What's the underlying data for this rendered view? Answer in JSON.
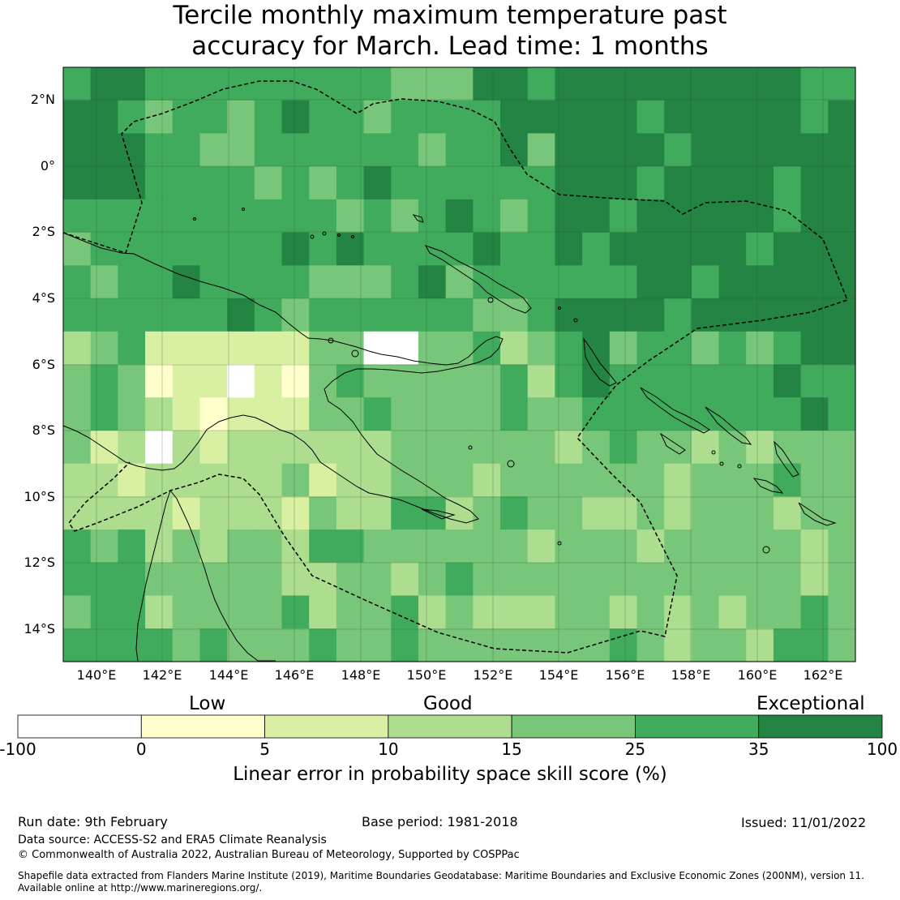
{
  "title": {
    "line1": "Tercile monthly maximum temperature past",
    "line2": "accuracy for March. Lead time: 1 months"
  },
  "map": {
    "lat_labels": [
      "2°N",
      "0°",
      "2°S",
      "4°S",
      "6°S",
      "8°S",
      "10°S",
      "12°S",
      "14°S"
    ],
    "lon_labels": [
      "140°E",
      "142°E",
      "144°E",
      "146°E",
      "148°E",
      "150°E",
      "152°E",
      "154°E",
      "156°E",
      "158°E",
      "160°E",
      "162°E"
    ],
    "colors": {
      "neg": "#ffffff",
      "c0_5": "#ffffcc",
      "c5_10": "#d9f0a3",
      "c10_15": "#addd8e",
      "c15_25": "#78c679",
      "c25_35": "#41ab5d",
      "c35_100": "#238443"
    }
  },
  "colorbar": {
    "categories": [
      "Low",
      "Good",
      "Exceptional"
    ],
    "ticks": [
      "-100",
      "0",
      "5",
      "10",
      "15",
      "25",
      "35",
      "100"
    ],
    "title": "Linear error in probability space skill score (%)"
  },
  "footer": {
    "run_date": "Run date: 9th February",
    "base_period": "Base period: 1981-2018",
    "issued": "Issued: 11/01/2022",
    "data_source": "Data source: ACCESS-S2 and ERA5 Climate Reanalysis",
    "copyright": "© Commonwealth of Australia 2022, Australian Bureau of Meteorology, Supported by COSPPac",
    "shapefile_line1": "Shapefile data extracted from Flanders Marine Institute (2019), Maritime Boundaries Geodatabase: Maritime Boundaries and Exclusive Economic Zones (200NM), version 11.",
    "shapefile_line2": "Available online at http://www.marineregions.org/."
  }
}
